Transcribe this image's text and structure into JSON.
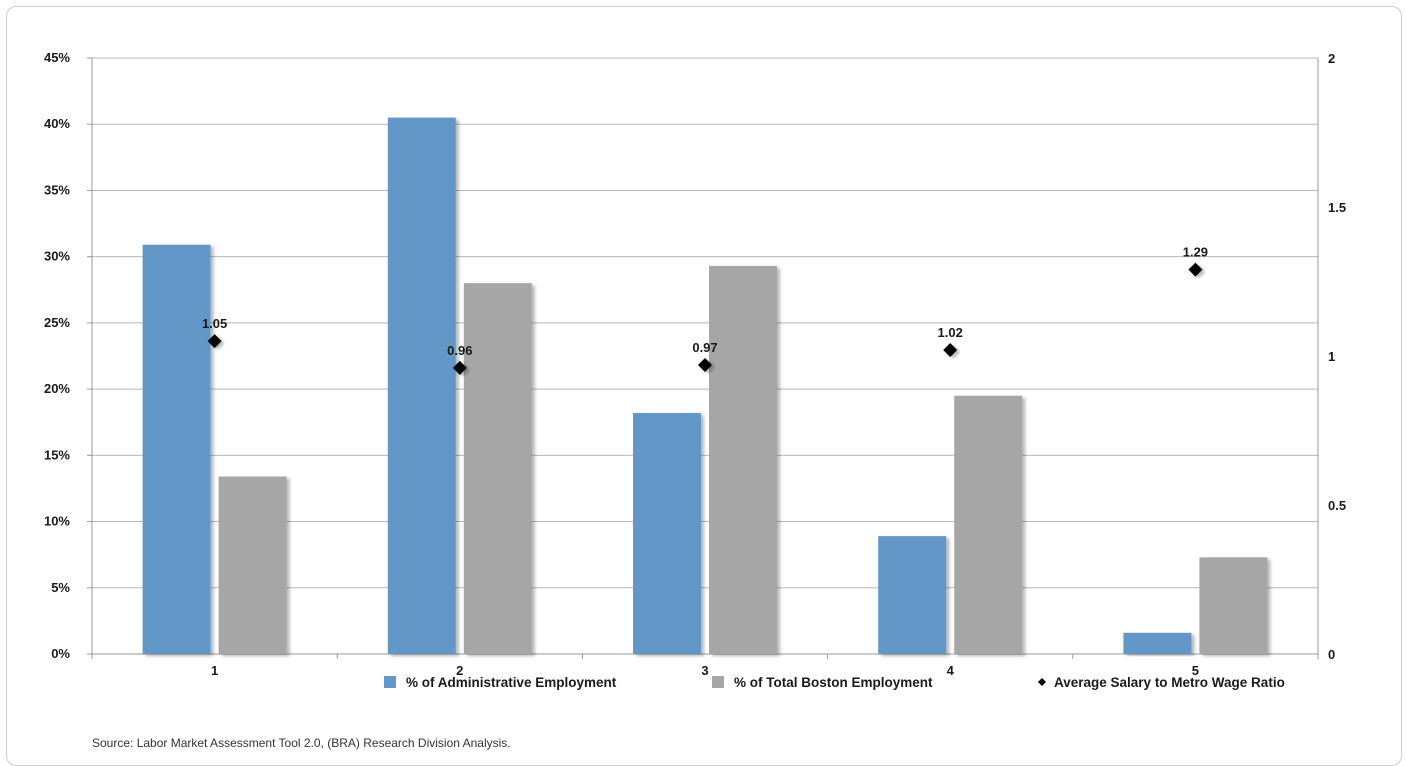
{
  "chart_data": {
    "type": "bar",
    "categories": [
      "1",
      "2",
      "3",
      "4",
      "5"
    ],
    "series": [
      {
        "name": "% of Administrative Employment",
        "type": "bar",
        "axis": "left",
        "color": "#6497c8",
        "values": [
          30.9,
          40.5,
          18.2,
          8.9,
          1.6
        ]
      },
      {
        "name": "% of Total Boston Employment",
        "type": "bar",
        "axis": "left",
        "color": "#a6a6a6",
        "values": [
          13.4,
          28.0,
          29.3,
          19.5,
          7.3
        ]
      },
      {
        "name": "Average Salary to Metro Wage Ratio",
        "type": "scatter",
        "axis": "right",
        "color": "#000000",
        "marker": "diamond",
        "values": [
          1.05,
          0.96,
          0.97,
          1.02,
          1.29
        ],
        "labels": [
          "1.05",
          "0.96",
          "0.97",
          "1.02",
          "1.29"
        ]
      }
    ],
    "y_left": {
      "ylim": [
        0,
        45
      ],
      "ticks": [
        0,
        5,
        10,
        15,
        20,
        25,
        30,
        35,
        40,
        45
      ],
      "tick_labels": [
        "0%",
        "5%",
        "10%",
        "15%",
        "20%",
        "25%",
        "30%",
        "35%",
        "40%",
        "45%"
      ]
    },
    "y_right": {
      "ylim": [
        0,
        2
      ],
      "ticks": [
        0,
        0.5,
        1,
        1.5,
        2
      ],
      "tick_labels": [
        "0",
        "0.5",
        "1",
        "1.5",
        "2"
      ]
    },
    "title": "",
    "xlabel": "",
    "ylabel": "",
    "grid": "horizontal",
    "legend_position": "bottom"
  },
  "source": "Source: Labor Market Assessment Tool 2.0, (BRA) Research Division Analysis."
}
